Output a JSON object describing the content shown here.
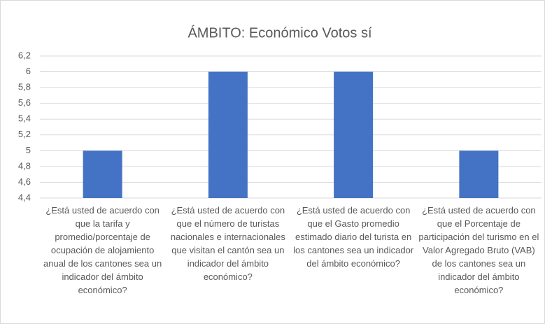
{
  "chart_data": {
    "type": "bar",
    "title": "ÁMBITO: Económico Votos sí",
    "categories": [
      "¿Está usted de acuerdo con que la tarifa y promedio/porcentaje de ocupación de alojamiento anual de los cantones sea un indicador del ámbito económico?",
      "¿Está usted de acuerdo con que el número de turistas nacionales e internacionales que visitan el cantón sea un indicador del ámbito económico?",
      "¿Está usted de acuerdo con que el Gasto promedio estimado diario del turista en los cantones sea un indicador del ámbito económico?",
      "¿Está usted de acuerdo con que el Porcentaje de participación del turismo en el Valor Agregado Bruto (VAB) de los cantones sea un indicador del ámbito económico?"
    ],
    "values": [
      5,
      6,
      6,
      5
    ],
    "color": "#4472c4",
    "ylim": [
      4.4,
      6.2
    ],
    "yticks": [
      {
        "value": 4.4,
        "label": "4,4"
      },
      {
        "value": 4.6,
        "label": "4,6"
      },
      {
        "value": 4.8,
        "label": "4,8"
      },
      5,
      {
        "value": 5.2,
        "label": "5,2"
      },
      {
        "value": 5.4,
        "label": "5,4"
      },
      {
        "value": 5.6,
        "label": "5,6"
      },
      {
        "value": 5.8,
        "label": "5,8"
      },
      6,
      {
        "value": 6.2,
        "label": "6,2"
      }
    ],
    "grid": true
  }
}
